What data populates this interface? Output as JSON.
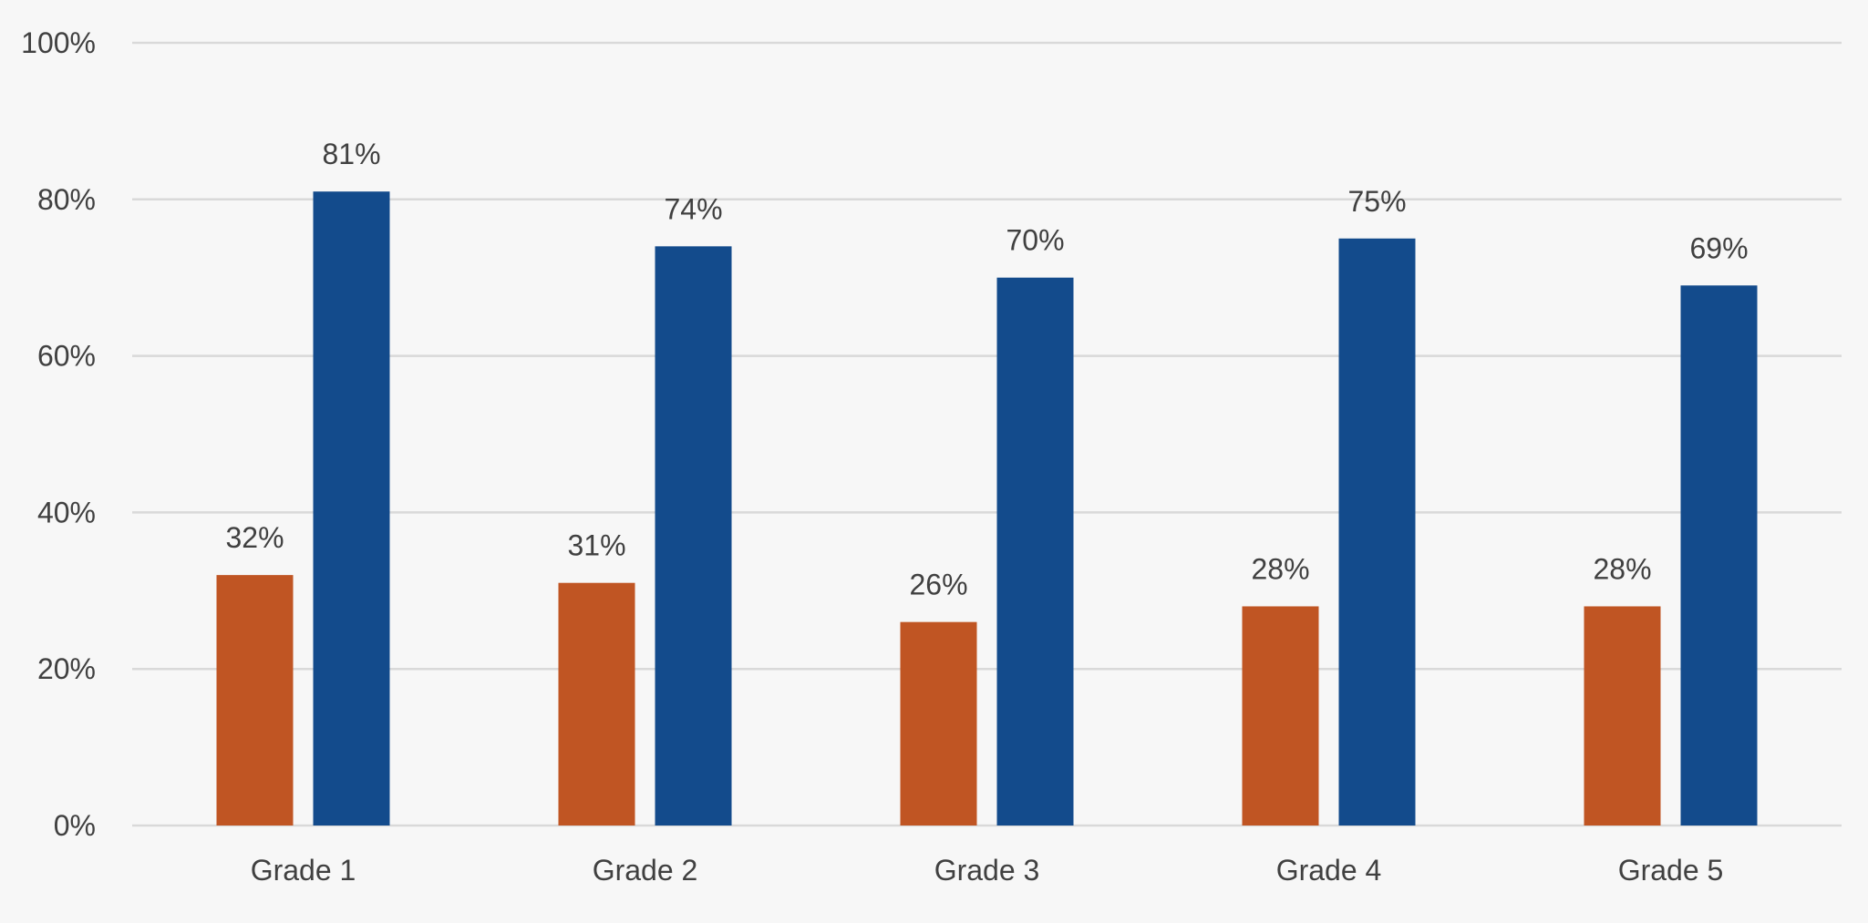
{
  "chart_data": {
    "type": "bar",
    "title": "",
    "xlabel": "",
    "ylabel": "",
    "categories": [
      "Grade 1",
      "Grade 2",
      "Grade 3",
      "Grade 4",
      "Grade 5"
    ],
    "series": [
      {
        "values": [
          32,
          31,
          26,
          28,
          28
        ],
        "labels": [
          "32%",
          "31%",
          "26%",
          "28%",
          "28%"
        ],
        "color": "#c05523"
      },
      {
        "values": [
          81,
          74,
          70,
          75,
          69
        ],
        "labels": [
          "81%",
          "74%",
          "70%",
          "75%",
          "69%"
        ],
        "color": "#134b8c"
      }
    ],
    "ylim": [
      0,
      100
    ],
    "yticks": [
      0,
      20,
      40,
      60,
      80,
      100
    ],
    "ytick_labels": [
      "0%",
      "20%",
      "40%",
      "60%",
      "80%",
      "100%"
    ],
    "grid": true,
    "gridline_color": "#d9d9d9",
    "legend": "none",
    "background": "#f7f7f7"
  }
}
